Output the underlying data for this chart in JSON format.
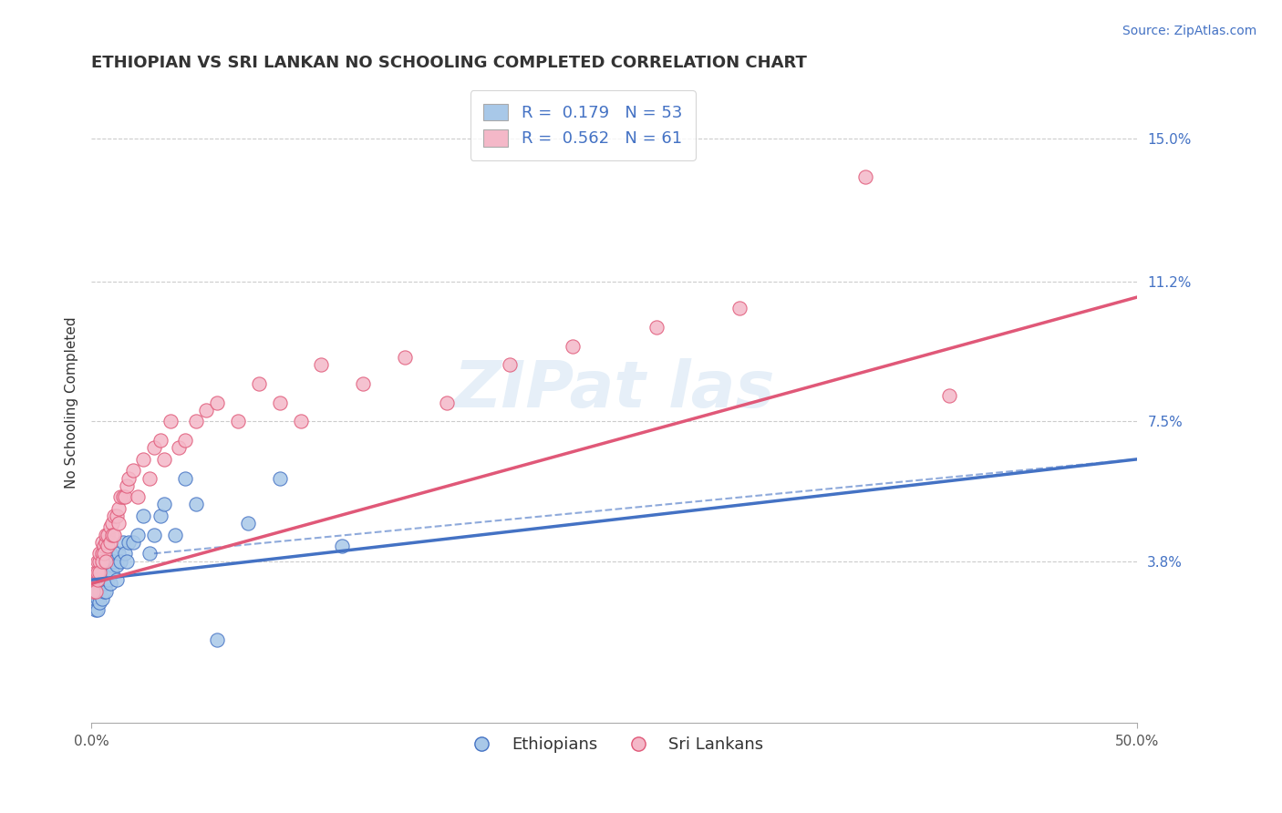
{
  "title": "ETHIOPIAN VS SRI LANKAN NO SCHOOLING COMPLETED CORRELATION CHART",
  "source": "Source: ZipAtlas.com",
  "ylabel": "No Schooling Completed",
  "ytick_labels": [
    "15.0%",
    "11.2%",
    "7.5%",
    "3.8%"
  ],
  "ytick_values": [
    0.15,
    0.112,
    0.075,
    0.038
  ],
  "xlim": [
    0.0,
    0.5
  ],
  "ylim": [
    -0.005,
    0.165
  ],
  "blue_color": "#a8c8e8",
  "pink_color": "#f4b8c8",
  "blue_line_color": "#4472c4",
  "pink_line_color": "#e05878",
  "watermark": "ZIPat las",
  "title_fontsize": 13,
  "axis_label_fontsize": 11,
  "tick_fontsize": 11,
  "legend_fontsize": 13,
  "source_fontsize": 10,
  "eth_x": [
    0.001,
    0.001,
    0.002,
    0.002,
    0.002,
    0.003,
    0.003,
    0.003,
    0.003,
    0.004,
    0.004,
    0.004,
    0.005,
    0.005,
    0.005,
    0.005,
    0.005,
    0.006,
    0.006,
    0.006,
    0.007,
    0.007,
    0.007,
    0.008,
    0.008,
    0.008,
    0.009,
    0.009,
    0.01,
    0.01,
    0.011,
    0.012,
    0.012,
    0.013,
    0.014,
    0.015,
    0.016,
    0.017,
    0.018,
    0.02,
    0.022,
    0.025,
    0.028,
    0.03,
    0.033,
    0.035,
    0.04,
    0.045,
    0.05,
    0.06,
    0.075,
    0.09,
    0.12
  ],
  "eth_y": [
    0.033,
    0.028,
    0.03,
    0.025,
    0.032,
    0.033,
    0.028,
    0.03,
    0.025,
    0.032,
    0.03,
    0.027,
    0.038,
    0.035,
    0.033,
    0.028,
    0.032,
    0.03,
    0.035,
    0.033,
    0.032,
    0.035,
    0.03,
    0.038,
    0.033,
    0.035,
    0.04,
    0.032,
    0.037,
    0.035,
    0.038,
    0.037,
    0.033,
    0.04,
    0.038,
    0.043,
    0.04,
    0.038,
    0.043,
    0.043,
    0.045,
    0.05,
    0.04,
    0.045,
    0.05,
    0.053,
    0.045,
    0.06,
    0.053,
    0.017,
    0.048,
    0.06,
    0.042
  ],
  "slk_x": [
    0.001,
    0.001,
    0.002,
    0.002,
    0.003,
    0.003,
    0.003,
    0.004,
    0.004,
    0.004,
    0.005,
    0.005,
    0.005,
    0.006,
    0.006,
    0.007,
    0.007,
    0.007,
    0.008,
    0.008,
    0.009,
    0.009,
    0.01,
    0.01,
    0.011,
    0.011,
    0.012,
    0.013,
    0.013,
    0.014,
    0.015,
    0.016,
    0.017,
    0.018,
    0.02,
    0.022,
    0.025,
    0.028,
    0.03,
    0.033,
    0.035,
    0.038,
    0.042,
    0.045,
    0.05,
    0.055,
    0.06,
    0.07,
    0.08,
    0.09,
    0.1,
    0.11,
    0.13,
    0.15,
    0.17,
    0.2,
    0.23,
    0.27,
    0.31,
    0.37,
    0.41
  ],
  "slk_y": [
    0.033,
    0.03,
    0.035,
    0.03,
    0.038,
    0.033,
    0.035,
    0.038,
    0.035,
    0.04,
    0.043,
    0.04,
    0.038,
    0.042,
    0.04,
    0.043,
    0.038,
    0.045,
    0.045,
    0.042,
    0.047,
    0.043,
    0.048,
    0.045,
    0.05,
    0.045,
    0.05,
    0.052,
    0.048,
    0.055,
    0.055,
    0.055,
    0.058,
    0.06,
    0.062,
    0.055,
    0.065,
    0.06,
    0.068,
    0.07,
    0.065,
    0.075,
    0.068,
    0.07,
    0.075,
    0.078,
    0.08,
    0.075,
    0.085,
    0.08,
    0.075,
    0.09,
    0.085,
    0.092,
    0.08,
    0.09,
    0.095,
    0.1,
    0.105,
    0.14,
    0.082
  ],
  "eth_line_x0": 0.0,
  "eth_line_x1": 0.5,
  "eth_line_y0": 0.033,
  "eth_line_y1": 0.065,
  "slk_line_x0": 0.0,
  "slk_line_x1": 0.5,
  "slk_line_y0": 0.032,
  "slk_line_y1": 0.108
}
